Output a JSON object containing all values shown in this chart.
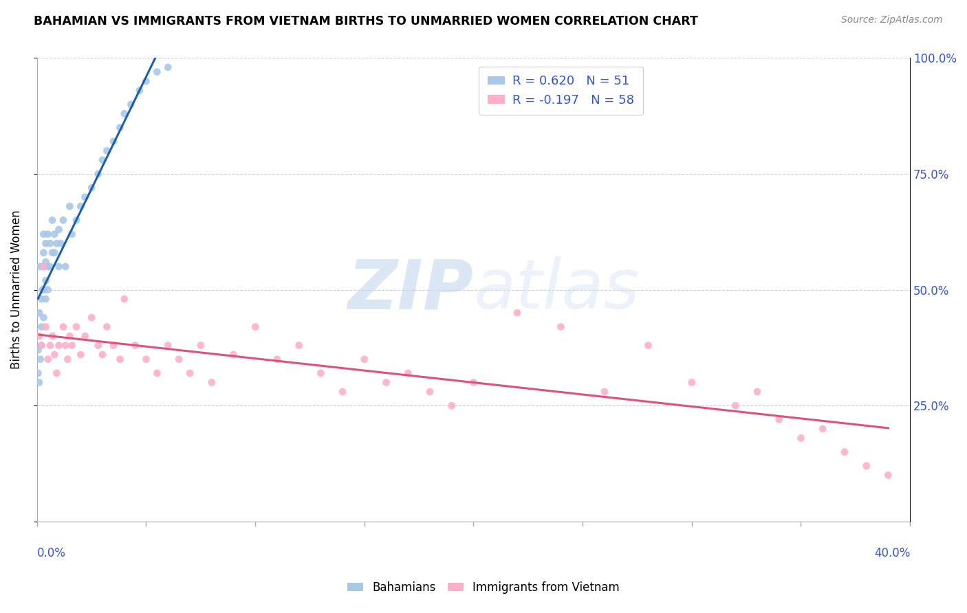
{
  "title": "BAHAMIAN VS IMMIGRANTS FROM VIETNAM BIRTHS TO UNMARRIED WOMEN CORRELATION CHART",
  "source": "Source: ZipAtlas.com",
  "ylabel": "Births to Unmarried Women",
  "legend_R1": "R = 0.620",
  "legend_N1": "N = 51",
  "legend_R2": "R = -0.197",
  "legend_N2": "N = 58",
  "color_blue": "#a8c8e8",
  "color_pink": "#ffb0c8",
  "line_blue": "#1a5fa8",
  "line_pink": "#e0507a",
  "watermark_zip": "ZIP",
  "watermark_atlas": "atlas",
  "xlim": [
    0.0,
    0.4
  ],
  "ylim": [
    0.0,
    1.0
  ],
  "right_ytick_vals": [
    1.0,
    0.75,
    0.5,
    0.25
  ],
  "right_ytick_labels": [
    "100.0%",
    "75.0%",
    "50.0%",
    "25.0%"
  ],
  "bah_x": [
    0.0005,
    0.0005,
    0.001,
    0.001,
    0.0015,
    0.0015,
    0.002,
    0.002,
    0.002,
    0.0025,
    0.003,
    0.003,
    0.003,
    0.003,
    0.003,
    0.004,
    0.004,
    0.004,
    0.004,
    0.005,
    0.005,
    0.005,
    0.006,
    0.006,
    0.007,
    0.007,
    0.008,
    0.008,
    0.009,
    0.01,
    0.01,
    0.011,
    0.012,
    0.013,
    0.015,
    0.016,
    0.018,
    0.02,
    0.022,
    0.025,
    0.028,
    0.03,
    0.032,
    0.035,
    0.038,
    0.04,
    0.043,
    0.047,
    0.05,
    0.055,
    0.06
  ],
  "bah_y": [
    0.37,
    0.32,
    0.45,
    0.3,
    0.55,
    0.35,
    0.42,
    0.38,
    0.48,
    0.5,
    0.44,
    0.5,
    0.55,
    0.58,
    0.62,
    0.48,
    0.52,
    0.56,
    0.6,
    0.5,
    0.55,
    0.62,
    0.55,
    0.6,
    0.58,
    0.65,
    0.58,
    0.62,
    0.6,
    0.63,
    0.55,
    0.6,
    0.65,
    0.55,
    0.68,
    0.62,
    0.65,
    0.68,
    0.7,
    0.72,
    0.75,
    0.78,
    0.8,
    0.82,
    0.85,
    0.88,
    0.9,
    0.93,
    0.95,
    0.97,
    0.98
  ],
  "viet_x": [
    0.001,
    0.002,
    0.003,
    0.004,
    0.005,
    0.006,
    0.007,
    0.008,
    0.009,
    0.01,
    0.012,
    0.013,
    0.014,
    0.015,
    0.016,
    0.018,
    0.02,
    0.022,
    0.025,
    0.028,
    0.03,
    0.032,
    0.035,
    0.038,
    0.04,
    0.045,
    0.05,
    0.055,
    0.06,
    0.065,
    0.07,
    0.075,
    0.08,
    0.09,
    0.1,
    0.11,
    0.12,
    0.13,
    0.14,
    0.15,
    0.16,
    0.17,
    0.18,
    0.19,
    0.2,
    0.22,
    0.24,
    0.26,
    0.28,
    0.3,
    0.32,
    0.33,
    0.34,
    0.35,
    0.36,
    0.37,
    0.38,
    0.39
  ],
  "viet_y": [
    0.4,
    0.38,
    0.55,
    0.42,
    0.35,
    0.38,
    0.4,
    0.36,
    0.32,
    0.38,
    0.42,
    0.38,
    0.35,
    0.4,
    0.38,
    0.42,
    0.36,
    0.4,
    0.44,
    0.38,
    0.36,
    0.42,
    0.38,
    0.35,
    0.48,
    0.38,
    0.35,
    0.32,
    0.38,
    0.35,
    0.32,
    0.38,
    0.3,
    0.36,
    0.42,
    0.35,
    0.38,
    0.32,
    0.28,
    0.35,
    0.3,
    0.32,
    0.28,
    0.25,
    0.3,
    0.45,
    0.42,
    0.28,
    0.38,
    0.3,
    0.25,
    0.28,
    0.22,
    0.18,
    0.2,
    0.15,
    0.12,
    0.1
  ]
}
